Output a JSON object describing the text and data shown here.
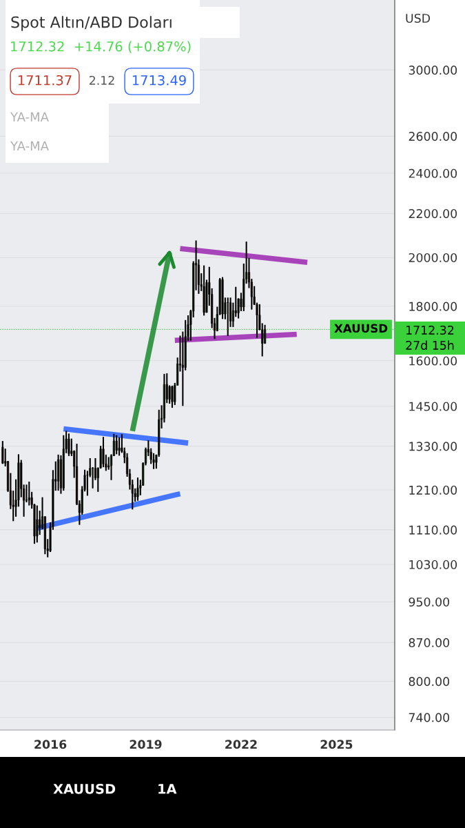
{
  "chart_data": {
    "type": "candlestick",
    "title": "Spot Altın/ABD Doları",
    "subtitle": "1712.32  +14.76 (+0.87%)",
    "x": [
      "2014-07",
      "2014-08",
      "2014-09",
      "2014-10",
      "2014-11",
      "2014-12",
      "2015-01",
      "2015-02",
      "2015-03",
      "2015-04",
      "2015-05",
      "2015-06",
      "2015-07",
      "2015-08",
      "2015-09",
      "2015-10",
      "2015-11",
      "2015-12",
      "2016-01",
      "2016-02",
      "2016-03",
      "2016-04",
      "2016-05",
      "2016-06",
      "2016-07",
      "2016-08",
      "2016-09",
      "2016-10",
      "2016-11",
      "2016-12",
      "2017-01",
      "2017-02",
      "2017-03",
      "2017-04",
      "2017-05",
      "2017-06",
      "2017-07",
      "2017-08",
      "2017-09",
      "2017-10",
      "2017-11",
      "2017-12",
      "2018-01",
      "2018-02",
      "2018-03",
      "2018-04",
      "2018-05",
      "2018-06",
      "2018-07",
      "2018-08",
      "2018-09",
      "2018-10",
      "2018-11",
      "2018-12",
      "2019-01",
      "2019-02",
      "2019-03",
      "2019-04",
      "2019-05",
      "2019-06",
      "2019-07",
      "2019-08",
      "2019-09",
      "2019-10",
      "2019-11",
      "2019-12",
      "2020-01",
      "2020-02",
      "2020-03",
      "2020-04",
      "2020-05",
      "2020-06",
      "2020-07",
      "2020-08",
      "2020-09",
      "2020-10",
      "2020-11",
      "2020-12",
      "2021-01",
      "2021-02",
      "2021-03",
      "2021-04",
      "2021-05",
      "2021-06",
      "2021-07",
      "2021-08",
      "2021-09",
      "2021-10",
      "2021-11",
      "2021-12",
      "2022-01",
      "2022-02",
      "2022-03",
      "2022-04",
      "2022-05",
      "2022-06",
      "2022-07",
      "2022-08",
      "2022-09",
      "2022-10"
    ],
    "ohlc": [
      [
        1327,
        1345,
        1280,
        1282
      ],
      [
        1282,
        1323,
        1273,
        1287
      ],
      [
        1287,
        1288,
        1205,
        1208
      ],
      [
        1208,
        1255,
        1161,
        1171
      ],
      [
        1171,
        1208,
        1131,
        1167
      ],
      [
        1167,
        1238,
        1142,
        1184
      ],
      [
        1184,
        1307,
        1167,
        1283
      ],
      [
        1283,
        1291,
        1191,
        1213
      ],
      [
        1213,
        1224,
        1142,
        1183
      ],
      [
        1183,
        1224,
        1178,
        1184
      ],
      [
        1184,
        1232,
        1170,
        1190
      ],
      [
        1190,
        1205,
        1162,
        1172
      ],
      [
        1172,
        1174,
        1077,
        1095
      ],
      [
        1095,
        1170,
        1080,
        1135
      ],
      [
        1135,
        1157,
        1098,
        1115
      ],
      [
        1115,
        1191,
        1111,
        1142
      ],
      [
        1142,
        1143,
        1053,
        1065
      ],
      [
        1065,
        1088,
        1046,
        1061
      ],
      [
        1061,
        1128,
        1058,
        1118
      ],
      [
        1118,
        1263,
        1110,
        1238
      ],
      [
        1238,
        1287,
        1208,
        1233
      ],
      [
        1233,
        1306,
        1208,
        1292
      ],
      [
        1292,
        1304,
        1200,
        1215
      ],
      [
        1215,
        1362,
        1208,
        1322
      ],
      [
        1322,
        1375,
        1310,
        1351
      ],
      [
        1351,
        1367,
        1302,
        1309
      ],
      [
        1309,
        1352,
        1302,
        1316
      ],
      [
        1316,
        1318,
        1242,
        1273
      ],
      [
        1273,
        1337,
        1171,
        1174
      ],
      [
        1174,
        1183,
        1122,
        1152
      ],
      [
        1152,
        1220,
        1147,
        1211
      ],
      [
        1211,
        1264,
        1206,
        1249
      ],
      [
        1249,
        1261,
        1195,
        1249
      ],
      [
        1249,
        1296,
        1244,
        1268
      ],
      [
        1268,
        1271,
        1214,
        1268
      ],
      [
        1268,
        1296,
        1236,
        1242
      ],
      [
        1242,
        1270,
        1205,
        1269
      ],
      [
        1269,
        1331,
        1267,
        1322
      ],
      [
        1322,
        1357,
        1271,
        1280
      ],
      [
        1280,
        1306,
        1261,
        1271
      ],
      [
        1271,
        1299,
        1264,
        1275
      ],
      [
        1275,
        1307,
        1236,
        1303
      ],
      [
        1303,
        1366,
        1302,
        1345
      ],
      [
        1345,
        1362,
        1307,
        1318
      ],
      [
        1318,
        1356,
        1303,
        1325
      ],
      [
        1325,
        1365,
        1311,
        1315
      ],
      [
        1315,
        1326,
        1282,
        1298
      ],
      [
        1298,
        1310,
        1245,
        1253
      ],
      [
        1253,
        1266,
        1211,
        1224
      ],
      [
        1224,
        1237,
        1160,
        1201
      ],
      [
        1201,
        1214,
        1180,
        1192
      ],
      [
        1192,
        1243,
        1182,
        1215
      ],
      [
        1215,
        1237,
        1196,
        1222
      ],
      [
        1222,
        1284,
        1221,
        1282
      ],
      [
        1282,
        1326,
        1276,
        1321
      ],
      [
        1321,
        1347,
        1302,
        1313
      ],
      [
        1313,
        1324,
        1280,
        1292
      ],
      [
        1292,
        1310,
        1266,
        1284
      ],
      [
        1284,
        1306,
        1267,
        1305
      ],
      [
        1305,
        1439,
        1300,
        1409
      ],
      [
        1409,
        1453,
        1382,
        1413
      ],
      [
        1413,
        1555,
        1400,
        1520
      ],
      [
        1520,
        1557,
        1460,
        1472
      ],
      [
        1472,
        1517,
        1458,
        1513
      ],
      [
        1513,
        1516,
        1445,
        1464
      ],
      [
        1464,
        1525,
        1454,
        1517
      ],
      [
        1517,
        1611,
        1517,
        1589
      ],
      [
        1589,
        1689,
        1563,
        1585
      ],
      [
        1585,
        1704,
        1451,
        1577
      ],
      [
        1577,
        1747,
        1567,
        1686
      ],
      [
        1686,
        1765,
        1670,
        1730
      ],
      [
        1730,
        1786,
        1671,
        1781
      ],
      [
        1781,
        1984,
        1757,
        1975
      ],
      [
        1975,
        2075,
        1863,
        1968
      ],
      [
        1968,
        1992,
        1849,
        1886
      ],
      [
        1886,
        1933,
        1860,
        1879
      ],
      [
        1879,
        1966,
        1764,
        1776
      ],
      [
        1776,
        1906,
        1775,
        1895
      ],
      [
        1895,
        1960,
        1802,
        1847
      ],
      [
        1847,
        1871,
        1717,
        1734
      ],
      [
        1734,
        1755,
        1677,
        1708
      ],
      [
        1708,
        1798,
        1705,
        1769
      ],
      [
        1769,
        1913,
        1766,
        1907
      ],
      [
        1907,
        1917,
        1751,
        1770
      ],
      [
        1770,
        1834,
        1750,
        1814
      ],
      [
        1814,
        1834,
        1688,
        1814
      ],
      [
        1814,
        1834,
        1721,
        1743
      ],
      [
        1743,
        1814,
        1721,
        1783
      ],
      [
        1783,
        1877,
        1759,
        1774
      ],
      [
        1774,
        1831,
        1753,
        1829
      ],
      [
        1829,
        1853,
        1781,
        1797
      ],
      [
        1797,
        1974,
        1781,
        1909
      ],
      [
        1909,
        2070,
        1890,
        1937
      ],
      [
        1937,
        1998,
        1872,
        1896
      ],
      [
        1896,
        1910,
        1787,
        1837
      ],
      [
        1837,
        1880,
        1805,
        1807
      ],
      [
        1807,
        1814,
        1681,
        1766
      ],
      [
        1766,
        1808,
        1709,
        1711
      ],
      [
        1711,
        1735,
        1615,
        1661
      ],
      [
        1661,
        1729,
        1660,
        1712.32
      ]
    ],
    "colors": [
      "#8b2e2e",
      "#4caf50",
      "#8b2e2e",
      "#8b2e2e",
      "#8b2e2e",
      "#4caf50",
      "#4caf50",
      "#8b2e2e",
      "#8b2e2e",
      "#4caf50",
      "#4caf50",
      "#8b2e2e",
      "#8b2e2e",
      "#4caf50",
      "#8b2e2e",
      "#4caf50",
      "#8b2e2e",
      "#8b2e2e",
      "#4caf50",
      "#4caf50",
      "#8b2e2e",
      "#4caf50",
      "#8b2e2e",
      "#4caf50",
      "#4caf50",
      "#8b2e2e",
      "#4caf50",
      "#8b2e2e",
      "#8b2e2e",
      "#8b2e2e",
      "#4caf50",
      "#4caf50",
      "#4caf50",
      "#4caf50",
      "#4caf50",
      "#8b2e2e",
      "#4caf50",
      "#4caf50",
      "#8b2e2e",
      "#8b2e2e",
      "#4caf50",
      "#4caf50",
      "#4caf50",
      "#8b2e2e",
      "#4caf50",
      "#8b2e2e",
      "#8b2e2e",
      "#8b2e2e",
      "#8b2e2e",
      "#8b2e2e",
      "#8b2e2e",
      "#4caf50",
      "#4caf50",
      "#4caf50",
      "#4caf50",
      "#8b2e2e",
      "#8b2e2e",
      "#8b2e2e",
      "#4caf50",
      "#4caf50",
      "#4caf50",
      "#4caf50",
      "#8b2e2e",
      "#4caf50",
      "#8b2e2e",
      "#4caf50",
      "#4caf50",
      "#8b2e2e",
      "#8b2e2e",
      "#4caf50",
      "#4caf50",
      "#4caf50",
      "#4caf50",
      "#8b2e2e",
      "#8b2e2e",
      "#8b2e2e",
      "#8b2e2e",
      "#4caf50",
      "#8b2e2e",
      "#8b2e2e",
      "#8b2e2e",
      "#4caf50",
      "#4caf50",
      "#8b2e2e",
      "#4caf50",
      "#4caf50",
      "#8b2e2e",
      "#4caf50",
      "#8b2e2e",
      "#4caf50",
      "#8b2e2e",
      "#4caf50",
      "#4caf50",
      "#8b2e2e",
      "#8b2e2e",
      "#8b2e2e",
      "#8b2e2e",
      "#8b2e2e",
      "#8b2e2e",
      "#4caf50"
    ],
    "series": [
      {
        "type": "line",
        "color": "#2962ff",
        "x": [
          "2016-06",
          "2020-05"
        ],
        "values": [
          1381,
          1339
        ]
      },
      {
        "type": "line",
        "color": "#2962ff",
        "x": [
          "2015-08",
          "2020-02"
        ],
        "values": [
          1114,
          1200
        ]
      },
      {
        "type": "line",
        "color": "#9c27b0",
        "x": [
          "2020-02",
          "2024-02"
        ],
        "values": [
          2039,
          1979
        ]
      },
      {
        "type": "line",
        "color": "#9c27b0",
        "x": [
          "2019-12",
          "2023-10"
        ],
        "values": [
          1672,
          1694
        ]
      },
      {
        "type": "line",
        "color": "#1b8a2e",
        "x": [
          "2018-08",
          "2019-10"
        ],
        "values": [
          1374,
          2021
        ]
      }
    ],
    "log": true,
    "ylim": [
      720,
      3490
    ],
    "yticks": [
      {
        "value": 740,
        "label": "740.00"
      },
      {
        "value": 800,
        "label": "800.00"
      },
      {
        "value": 870,
        "label": "870.00"
      },
      {
        "value": 950,
        "label": "950.00"
      },
      {
        "value": 1030,
        "label": "1030.00"
      },
      {
        "value": 1110,
        "label": "1110.00"
      },
      {
        "value": 1210,
        "label": "1210.00"
      },
      {
        "value": 1330,
        "label": "1330.00"
      },
      {
        "value": 1450,
        "label": "1450.00"
      },
      {
        "value": 1600,
        "label": "1600.00"
      },
      {
        "value": 1800,
        "label": "1800.00"
      },
      {
        "value": 2000,
        "label": "2000.00"
      },
      {
        "value": 2200,
        "label": "2200.00"
      },
      {
        "value": 2400,
        "label": "2400.00"
      },
      {
        "value": 2600,
        "label": "2600.00"
      },
      {
        "value": 3000,
        "label": "3000.00"
      }
    ],
    "xlim": [
      "2014-06",
      "2026-11"
    ],
    "xticks": [
      {
        "value": "2016",
        "label": "2016"
      },
      {
        "value": "2019",
        "label": "2019"
      },
      {
        "value": "2022",
        "label": "2022"
      },
      {
        "value": "2025",
        "label": "2025"
      }
    ],
    "grid": "y",
    "ref_lines": [
      {
        "axis": "y",
        "value": 1712.32,
        "label": "XAUUSD",
        "color": "#3ad13a",
        "line_style": "dotted"
      }
    ],
    "annotations": [
      "1711.37",
      "2.12",
      "1713.49",
      "YA-MA",
      "YA-MA",
      "USD",
      "1712.32",
      "27d 15h",
      "XAUUSD",
      "1A"
    ]
  }
}
